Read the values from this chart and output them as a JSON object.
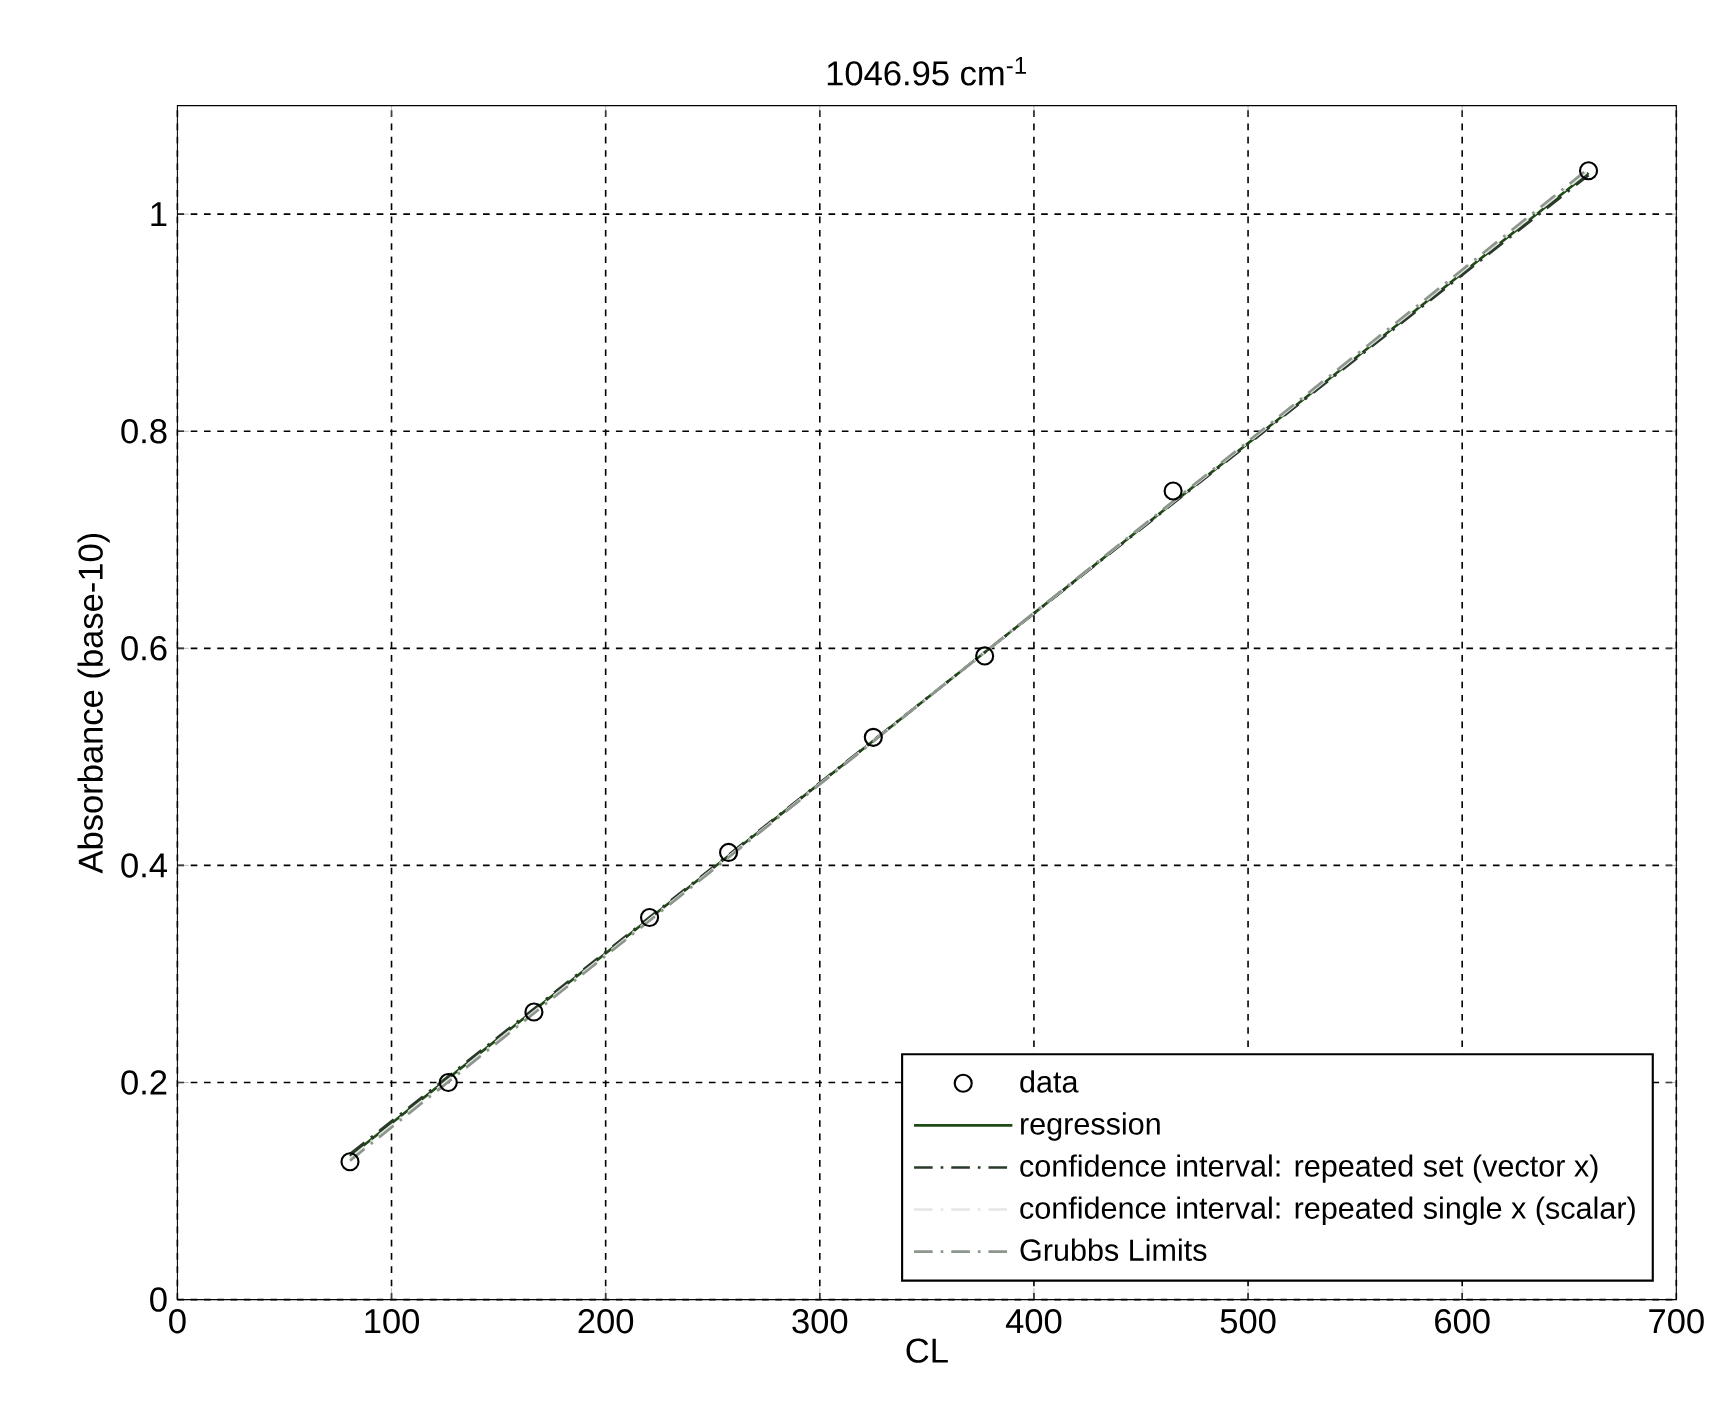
{
  "chart_data": {
    "type": "scatter",
    "title": "1046.95 cm$^{-1}$",
    "xlabel": "CL",
    "ylabel": "Absorbance (base-10)",
    "xlim": [
      0,
      700
    ],
    "ylim": [
      0,
      1.1
    ],
    "xticks": [
      0,
      100,
      200,
      300,
      400,
      500,
      600,
      700
    ],
    "yticks": [
      0,
      0.2,
      0.4,
      0.6,
      0.8,
      1
    ],
    "grid": true,
    "legend": "bottom right",
    "series": [
      {
        "name": "data",
        "type": "scatter",
        "marker": "circle",
        "color": "#000000",
        "x": [
          80.6,
          126.5,
          166.5,
          220.5,
          257.4,
          325,
          377,
          465,
          659
        ],
        "values": [
          0.127,
          0.2,
          0.265,
          0.352,
          0.412,
          0.518,
          0.593,
          0.745,
          1.04
        ]
      },
      {
        "name": "regression",
        "type": "line",
        "marker": "none",
        "line_style": "solid",
        "color": "#1e4a14",
        "x": [
          80.6,
          659
        ],
        "values": [
          0.132,
          1.038
        ]
      },
      {
        "name": "confidence interval: repeated set (vector x)",
        "type": "line",
        "marker": "none",
        "line_style": "dashed",
        "color": "#2a3a2a",
        "x": [
          80.6,
          659
        ],
        "values": [
          0.134,
          1.036
        ]
      },
      {
        "name": "confidence interval: repeated single x (scalar)",
        "type": "line",
        "marker": "none",
        "line_style": "dashed",
        "color": "#e6e6e6",
        "x": [
          80.6,
          659
        ],
        "values": [
          0.13,
          1.04
        ]
      },
      {
        "name": "Grubbs Limits",
        "type": "line",
        "marker": "none",
        "line_style": "dashed",
        "color": "#8c968c",
        "x": [
          80.6,
          659
        ],
        "values": [
          0.128,
          1.042
        ]
      }
    ]
  }
}
